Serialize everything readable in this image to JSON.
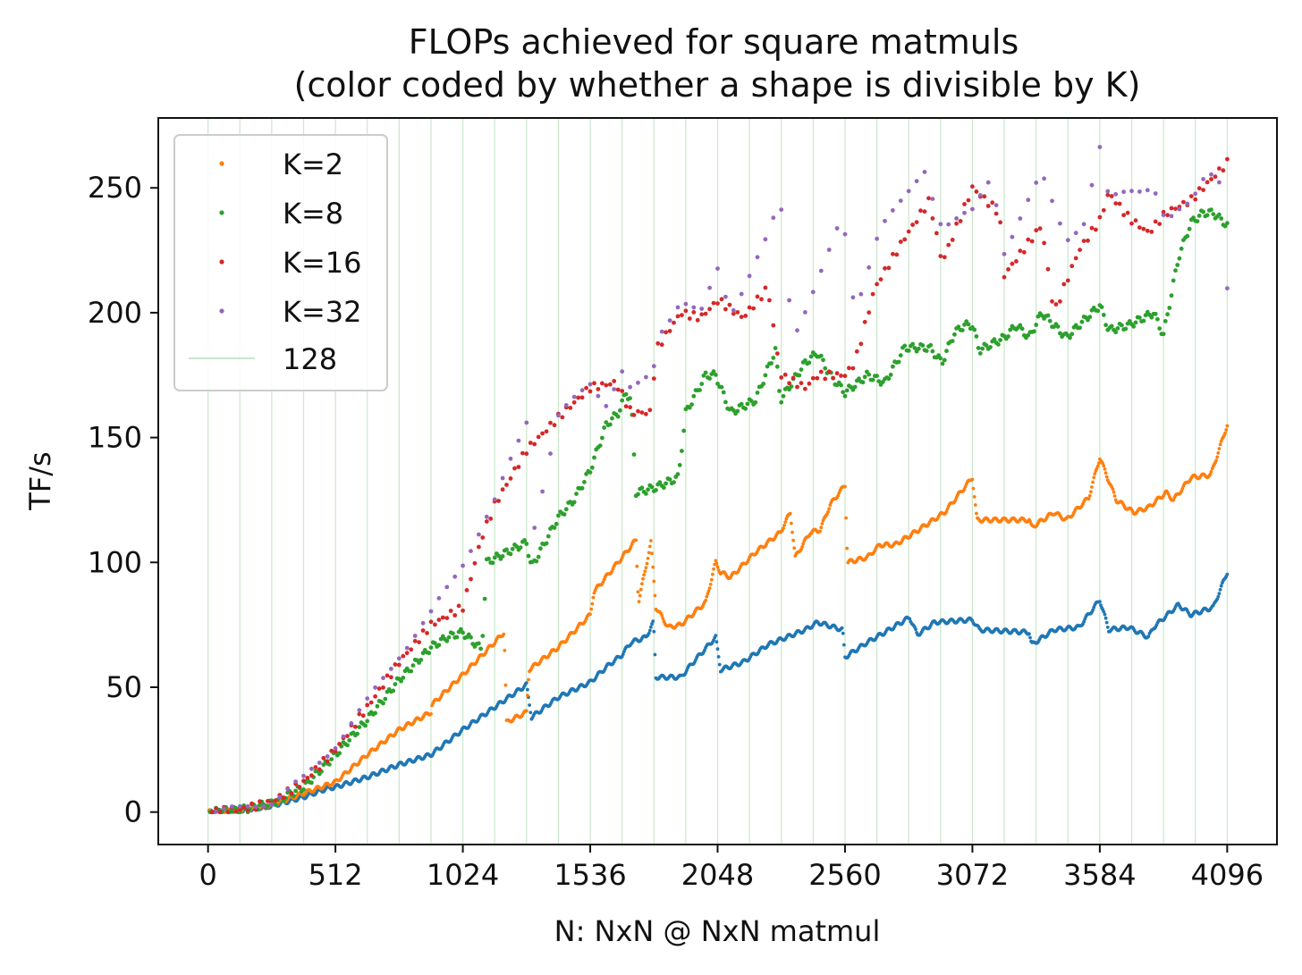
{
  "chart_data": {
    "type": "scatter",
    "title": "FLOPs achieved for square matmuls",
    "subtitle": "(color coded by whether a shape is divisible by K)",
    "xlabel": "N: NxN @ NxN matmul",
    "ylabel": "TF/s",
    "xlim": [
      -200,
      4296
    ],
    "ylim": [
      -13,
      278
    ],
    "xticks": [
      0,
      512,
      1024,
      1536,
      2048,
      2560,
      3072,
      3584,
      4096
    ],
    "xtick_labels": [
      "0",
      "512",
      "1024",
      "1536",
      "2048",
      "2560",
      "3072",
      "3584",
      "4096"
    ],
    "yticks": [
      0,
      50,
      100,
      150,
      200,
      250
    ],
    "ytick_labels": [
      "0",
      "50",
      "100",
      "150",
      "200",
      "250"
    ],
    "grid": "vertical lines every 128",
    "legend_position": "top-left",
    "vline_spacing": 128,
    "vline_label": "128",
    "vline_color": "#2ca02c",
    "series": [
      {
        "name": "",
        "divisor": 1,
        "color": "#1f77b4",
        "anchors": [
          [
            0,
            0
          ],
          [
            128,
            0.6
          ],
          [
            256,
            2.5
          ],
          [
            384,
            6
          ],
          [
            480,
            9.5
          ],
          [
            512,
            10
          ],
          [
            640,
            14
          ],
          [
            768,
            19
          ],
          [
            896,
            23
          ],
          [
            1024,
            33
          ],
          [
            1152,
            42
          ],
          [
            1280,
            51
          ],
          [
            1300,
            38
          ],
          [
            1408,
            46
          ],
          [
            1536,
            52
          ],
          [
            1600,
            58
          ],
          [
            1664,
            63
          ],
          [
            1700,
            68
          ],
          [
            1760,
            70
          ],
          [
            1790,
            76
          ],
          [
            1800,
            54
          ],
          [
            1900,
            54
          ],
          [
            1950,
            60
          ],
          [
            2040,
            70
          ],
          [
            2060,
            57
          ],
          [
            2150,
            60
          ],
          [
            2250,
            67
          ],
          [
            2400,
            73
          ],
          [
            2450,
            76
          ],
          [
            2550,
            73
          ],
          [
            2560,
            62
          ],
          [
            2650,
            68
          ],
          [
            2720,
            72
          ],
          [
            2820,
            78
          ],
          [
            2850,
            71
          ],
          [
            2920,
            76
          ],
          [
            3072,
            77
          ],
          [
            3100,
            73
          ],
          [
            3300,
            72
          ],
          [
            3310,
            67
          ],
          [
            3400,
            73
          ],
          [
            3500,
            74
          ],
          [
            3584,
            85
          ],
          [
            3620,
            73
          ],
          [
            3700,
            74
          ],
          [
            3780,
            70
          ],
          [
            3800,
            74
          ],
          [
            3900,
            83
          ],
          [
            3950,
            79
          ],
          [
            4040,
            82
          ],
          [
            4096,
            96
          ]
        ]
      },
      {
        "name": "K=2",
        "divisor": 2,
        "color": "#ff7f0e",
        "anchors": [
          [
            0,
            0
          ],
          [
            128,
            0.7
          ],
          [
            256,
            3
          ],
          [
            384,
            7.5
          ],
          [
            512,
            12
          ],
          [
            640,
            23
          ],
          [
            768,
            33
          ],
          [
            896,
            40
          ],
          [
            900,
            43
          ],
          [
            1024,
            55
          ],
          [
            1152,
            68
          ],
          [
            1190,
            72
          ],
          [
            1200,
            36
          ],
          [
            1280,
            40
          ],
          [
            1290,
            57
          ],
          [
            1408,
            66
          ],
          [
            1536,
            79
          ],
          [
            1550,
            88
          ],
          [
            1680,
            104
          ],
          [
            1720,
            109
          ],
          [
            1730,
            84
          ],
          [
            1780,
            108
          ],
          [
            1800,
            82
          ],
          [
            1850,
            74
          ],
          [
            1900,
            75
          ],
          [
            2000,
            84
          ],
          [
            2040,
            100
          ],
          [
            2060,
            96
          ],
          [
            2100,
            94
          ],
          [
            2200,
            104
          ],
          [
            2300,
            112
          ],
          [
            2340,
            120
          ],
          [
            2360,
            102
          ],
          [
            2420,
            112
          ],
          [
            2460,
            113
          ],
          [
            2500,
            123
          ],
          [
            2560,
            131
          ],
          [
            2570,
            100
          ],
          [
            2650,
            102
          ],
          [
            2700,
            107
          ],
          [
            2760,
            107
          ],
          [
            2840,
            112
          ],
          [
            2960,
            120
          ],
          [
            3072,
            134
          ],
          [
            3090,
            117
          ],
          [
            3200,
            117
          ],
          [
            3300,
            117
          ],
          [
            3310,
            114
          ],
          [
            3400,
            120
          ],
          [
            3450,
            117
          ],
          [
            3540,
            126
          ],
          [
            3584,
            142
          ],
          [
            3650,
            125
          ],
          [
            3720,
            120
          ],
          [
            3780,
            122
          ],
          [
            3850,
            128
          ],
          [
            3880,
            125
          ],
          [
            3950,
            134
          ],
          [
            4030,
            135
          ],
          [
            4096,
            155
          ]
        ]
      },
      {
        "name": "K=8",
        "divisor": 8,
        "color": "#2ca02c",
        "anchors": [
          [
            0,
            0
          ],
          [
            128,
            0.8
          ],
          [
            256,
            3.5
          ],
          [
            384,
            10
          ],
          [
            512,
            23
          ],
          [
            640,
            37
          ],
          [
            768,
            53
          ],
          [
            896,
            66
          ],
          [
            960,
            70
          ],
          [
            1024,
            72
          ],
          [
            1100,
            65
          ],
          [
            1120,
            100
          ],
          [
            1200,
            104
          ],
          [
            1280,
            108
          ],
          [
            1300,
            98
          ],
          [
            1408,
            118
          ],
          [
            1470,
            125
          ],
          [
            1536,
            137
          ],
          [
            1600,
            155
          ],
          [
            1650,
            160
          ],
          [
            1680,
            168
          ],
          [
            1700,
            165
          ],
          [
            1720,
            128
          ],
          [
            1800,
            130
          ],
          [
            1890,
            134
          ],
          [
            1920,
            160
          ],
          [
            2000,
            175
          ],
          [
            2040,
            175
          ],
          [
            2100,
            160
          ],
          [
            2200,
            165
          ],
          [
            2280,
            185
          ],
          [
            2300,
            165
          ],
          [
            2400,
            180
          ],
          [
            2450,
            184
          ],
          [
            2500,
            175
          ],
          [
            2560,
            168
          ],
          [
            2650,
            175
          ],
          [
            2720,
            172
          ],
          [
            2800,
            186
          ],
          [
            2900,
            186
          ],
          [
            2950,
            180
          ],
          [
            3000,
            192
          ],
          [
            3040,
            195
          ],
          [
            3072,
            195
          ],
          [
            3100,
            185
          ],
          [
            3200,
            190
          ],
          [
            3250,
            195
          ],
          [
            3300,
            190
          ],
          [
            3350,
            200
          ],
          [
            3450,
            190
          ],
          [
            3500,
            195
          ],
          [
            3584,
            203
          ],
          [
            3620,
            193
          ],
          [
            3700,
            195
          ],
          [
            3800,
            200
          ],
          [
            3840,
            191
          ],
          [
            3900,
            222
          ],
          [
            3950,
            236
          ],
          [
            4000,
            240
          ],
          [
            4040,
            240
          ],
          [
            4096,
            235
          ]
        ]
      },
      {
        "name": "K=16",
        "divisor": 16,
        "color": "#d62728",
        "anchors": [
          [
            0,
            0
          ],
          [
            128,
            0.9
          ],
          [
            256,
            4
          ],
          [
            384,
            12
          ],
          [
            512,
            25
          ],
          [
            640,
            42
          ],
          [
            768,
            60
          ],
          [
            896,
            75
          ],
          [
            1024,
            82
          ],
          [
            1100,
            110
          ],
          [
            1152,
            123
          ],
          [
            1280,
            145
          ],
          [
            1408,
            158
          ],
          [
            1536,
            170
          ],
          [
            1640,
            172
          ],
          [
            1700,
            160
          ],
          [
            1780,
            160
          ],
          [
            1800,
            185
          ],
          [
            1900,
            200
          ],
          [
            1980,
            198
          ],
          [
            2050,
            205
          ],
          [
            2150,
            198
          ],
          [
            2250,
            210
          ],
          [
            2300,
            175
          ],
          [
            2400,
            170
          ],
          [
            2450,
            175
          ],
          [
            2560,
            175
          ],
          [
            2600,
            180
          ],
          [
            2680,
            210
          ],
          [
            2800,
            230
          ],
          [
            2900,
            245
          ],
          [
            2950,
            220
          ],
          [
            3072,
            250
          ],
          [
            3180,
            240
          ],
          [
            3200,
            215
          ],
          [
            3350,
            235
          ],
          [
            3400,
            200
          ],
          [
            3500,
            225
          ],
          [
            3584,
            237
          ],
          [
            3620,
            248
          ],
          [
            3700,
            238
          ],
          [
            3780,
            232
          ],
          [
            3850,
            240
          ],
          [
            3950,
            245
          ],
          [
            4096,
            260
          ]
        ]
      },
      {
        "name": "K=32",
        "divisor": 32,
        "color": "#9467bd",
        "anchors": [
          [
            0,
            0
          ],
          [
            128,
            1
          ],
          [
            256,
            4.5
          ],
          [
            384,
            13
          ],
          [
            512,
            27
          ],
          [
            640,
            44
          ],
          [
            768,
            63
          ],
          [
            896,
            79
          ],
          [
            1024,
            100
          ],
          [
            1152,
            124
          ],
          [
            1280,
            157
          ],
          [
            1300,
            110
          ],
          [
            1408,
            158
          ],
          [
            1536,
            172
          ],
          [
            1600,
            164
          ],
          [
            1664,
            176
          ],
          [
            1700,
            168
          ],
          [
            1790,
            176
          ],
          [
            1800,
            190
          ],
          [
            1900,
            205
          ],
          [
            1980,
            199
          ],
          [
            2050,
            218
          ],
          [
            2100,
            200
          ],
          [
            2250,
            230
          ],
          [
            2300,
            245
          ],
          [
            2350,
            190
          ],
          [
            2500,
            225
          ],
          [
            2550,
            238
          ],
          [
            2600,
            200
          ],
          [
            2700,
            235
          ],
          [
            2800,
            245
          ],
          [
            2880,
            257
          ],
          [
            2950,
            235
          ],
          [
            3072,
            240
          ],
          [
            3150,
            255
          ],
          [
            3200,
            225
          ],
          [
            3350,
            255
          ],
          [
            3450,
            230
          ],
          [
            3520,
            236
          ],
          [
            3584,
            265
          ],
          [
            3620,
            245
          ],
          [
            3700,
            250
          ],
          [
            3800,
            250
          ],
          [
            3850,
            235
          ],
          [
            3950,
            245
          ],
          [
            4000,
            255
          ],
          [
            4060,
            258
          ],
          [
            4096,
            209
          ]
        ]
      }
    ]
  }
}
